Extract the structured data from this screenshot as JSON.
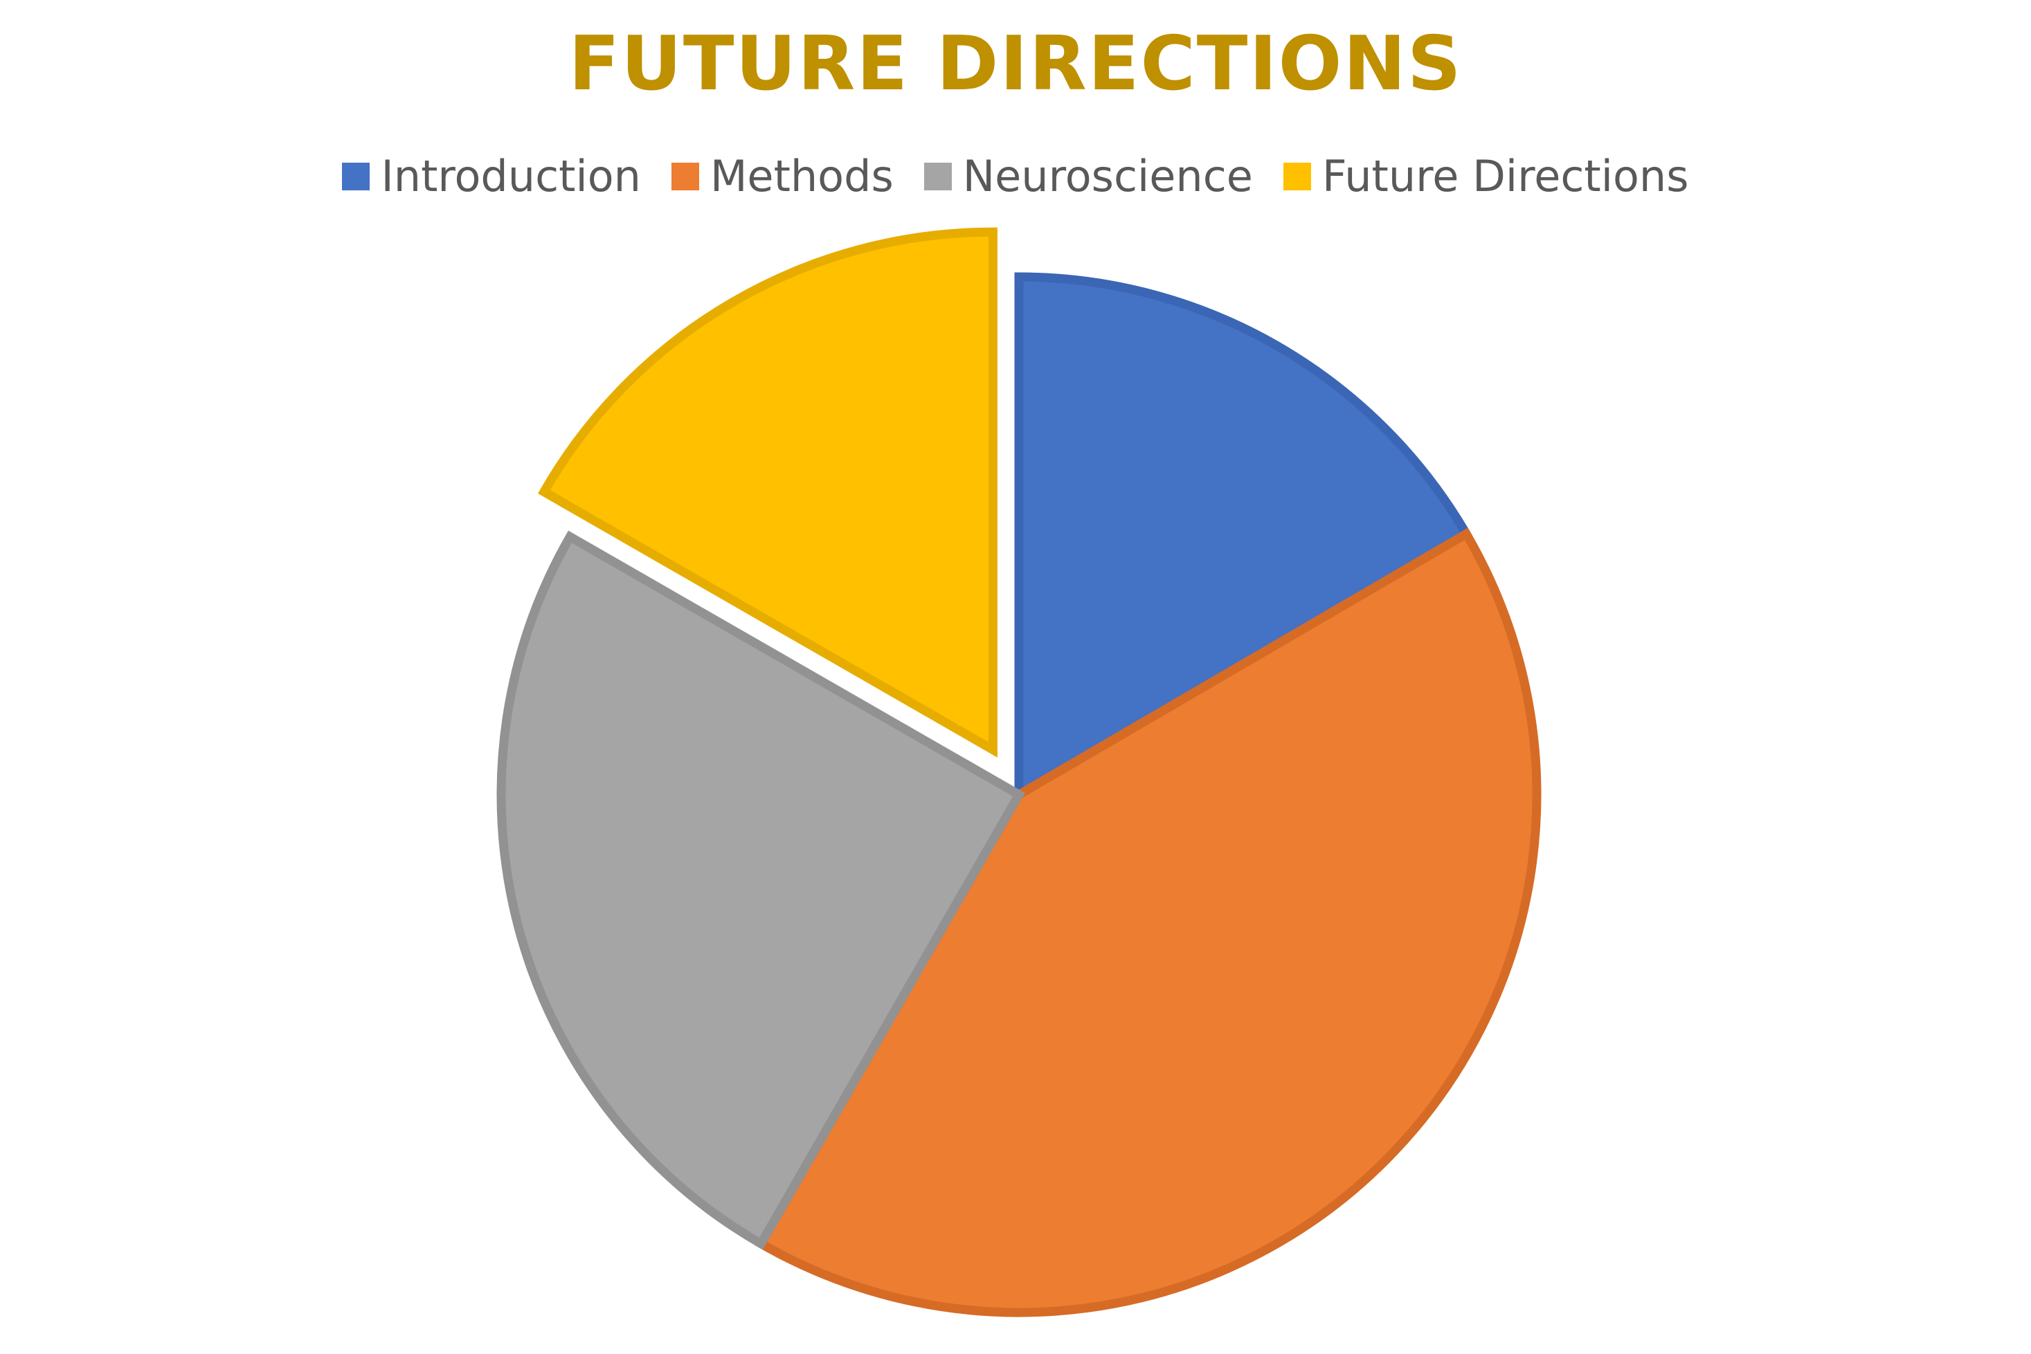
{
  "chart_data": {
    "type": "pie",
    "title": "FUTURE DIRECTIONS",
    "categories": [
      "Introduction",
      "Methods",
      "Neuroscience",
      "Future Directions"
    ],
    "values": [
      16.6,
      41.7,
      25.0,
      16.7
    ],
    "colors": [
      "#4472C4",
      "#ED7D31",
      "#A5A5A5",
      "#FFC000"
    ],
    "border_colors": [
      "#3B66B5",
      "#D66B26",
      "#929292",
      "#E6AD00"
    ],
    "exploded": [
      "Future Directions"
    ],
    "legend_position": "top",
    "start_angle": "12 o'clock",
    "direction": "clockwise",
    "data_labels": false
  },
  "title_color": "#BF9000",
  "legend_text_color": "#595959"
}
